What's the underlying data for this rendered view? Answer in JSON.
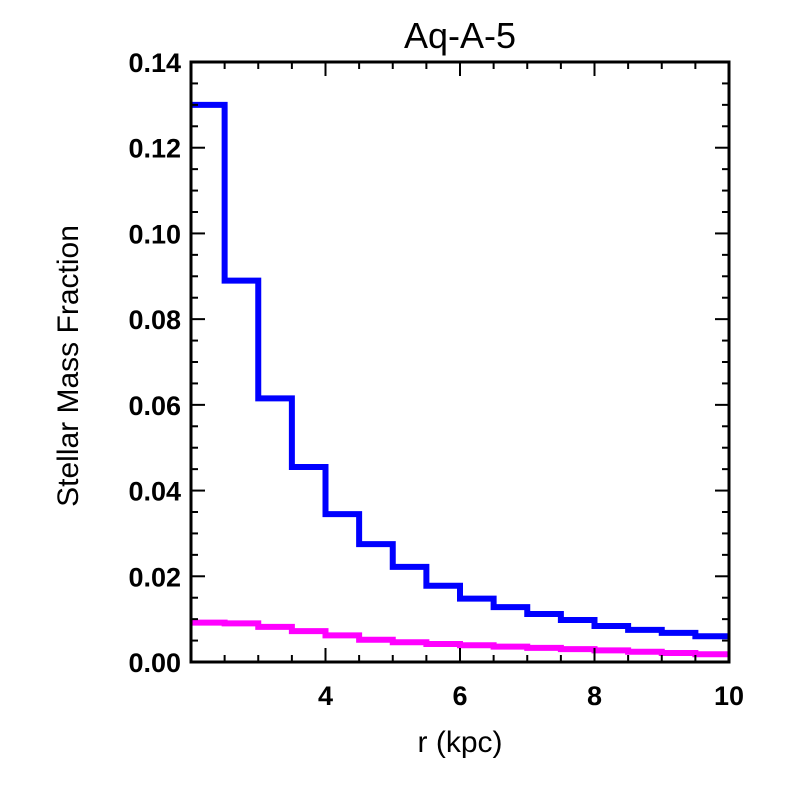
{
  "chart_data": {
    "type": "line",
    "title": "Aq-A-5",
    "xlabel": "r (kpc)",
    "ylabel": "Stellar Mass Fraction",
    "xlim": [
      2,
      10
    ],
    "ylim": [
      0,
      0.14
    ],
    "xticks": [
      4,
      6,
      8,
      10
    ],
    "xtick_labels": [
      "4",
      "6",
      "8",
      "10"
    ],
    "yticks": [
      0,
      0.02,
      0.04,
      0.06,
      0.08,
      0.1,
      0.12,
      0.14
    ],
    "ytick_labels": [
      "0.00",
      "0.02",
      "0.04",
      "0.06",
      "0.08",
      "0.10",
      "0.12",
      "0.14"
    ],
    "x_minor_step": 0.5,
    "y_minor_step": 0.005,
    "grid": false,
    "step_style": "histogram",
    "bin_edges": [
      2.0,
      2.5,
      3.0,
      3.5,
      4.0,
      4.5,
      5.0,
      5.5,
      6.0,
      6.5,
      7.0,
      7.5,
      8.0,
      8.5,
      9.0,
      9.5,
      10.0
    ],
    "series": [
      {
        "color": "#0000ff",
        "values": [
          0.13,
          0.089,
          0.0615,
          0.0455,
          0.0345,
          0.0275,
          0.0222,
          0.0178,
          0.0148,
          0.0128,
          0.0112,
          0.0098,
          0.0084,
          0.0075,
          0.0068,
          0.006
        ]
      },
      {
        "color": "#ff00ff",
        "values": [
          0.0092,
          0.009,
          0.0082,
          0.0072,
          0.0062,
          0.0052,
          0.0046,
          0.0042,
          0.0039,
          0.0036,
          0.0033,
          0.003,
          0.0027,
          0.0024,
          0.0021,
          0.0018
        ]
      }
    ]
  }
}
